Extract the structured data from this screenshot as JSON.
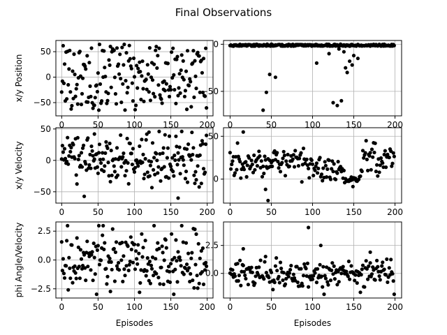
{
  "figure": {
    "title": "Final Observations"
  },
  "colors": {
    "marker": "#000000",
    "grid": "#b0b0b0",
    "frame": "#000000"
  },
  "chart_data": [
    {
      "type": "scatter",
      "name": "top-left",
      "xlabel": "",
      "ylabel": "x/y Position",
      "xlim": [
        -8,
        208
      ],
      "ylim": [
        -76,
        72
      ],
      "xticks": [
        0,
        50,
        100,
        150,
        200
      ],
      "yticks": [
        -50,
        0,
        50
      ],
      "ytick_labels": [
        "−50",
        "0",
        "50"
      ],
      "grid": true,
      "seed": 101,
      "n": 200,
      "generator": "uniform_block",
      "low": -65,
      "high": 65
    },
    {
      "type": "scatter",
      "name": "top-right",
      "xlabel": "",
      "ylabel": "",
      "xlim": [
        -8,
        208
      ],
      "ylim": [
        -76,
        4
      ],
      "xticks": [
        0,
        50,
        100,
        150,
        200
      ],
      "yticks": [
        -50,
        0
      ],
      "ytick_labels": [
        "−50",
        "0"
      ],
      "grid": true,
      "seed": 202,
      "n": 200,
      "generator": "near_zero_outliers",
      "base": -1,
      "spread": 2,
      "outliers": [
        [
          40,
          -70
        ],
        [
          44,
          -51
        ],
        [
          48,
          -32
        ],
        [
          55,
          -35
        ],
        [
          105,
          -20
        ],
        [
          120,
          -10
        ],
        [
          125,
          -62
        ],
        [
          130,
          -65
        ],
        [
          135,
          -60
        ],
        [
          140,
          -25
        ],
        [
          145,
          -18
        ],
        [
          150,
          -12
        ],
        [
          155,
          -15
        ],
        [
          142,
          -30
        ],
        [
          148,
          -22
        ],
        [
          138,
          -8
        ],
        [
          132,
          -5
        ]
      ]
    },
    {
      "type": "scatter",
      "name": "middle-left",
      "xlabel": "",
      "ylabel": "x/y Velocity",
      "xlim": [
        -8,
        208
      ],
      "ylim": [
        -68,
        52
      ],
      "xticks": [
        0,
        50,
        100,
        150,
        200
      ],
      "yticks": [
        -50,
        0,
        50
      ],
      "ytick_labels": [
        "−50",
        "0",
        "50"
      ],
      "grid": true,
      "seed": 303,
      "n": 200,
      "generator": "normal",
      "mean": 0,
      "sd": 20,
      "extra": [
        [
          160,
          -60
        ],
        [
          45,
          42
        ],
        [
          120,
          45
        ]
      ]
    },
    {
      "type": "scatter",
      "name": "middle-right",
      "xlabel": "",
      "ylabel": "",
      "xlim": [
        -8,
        208
      ],
      "ylim": [
        -28,
        60
      ],
      "xticks": [
        0,
        50,
        100,
        150,
        200
      ],
      "yticks": [
        0,
        50
      ],
      "ytick_labels": [
        "0",
        "50"
      ],
      "grid": true,
      "seed": 404,
      "n": 200,
      "generator": "segments",
      "extra": [
        [
          16,
          55
        ],
        [
          43,
          -12
        ],
        [
          46,
          -25
        ]
      ]
    },
    {
      "type": "scatter",
      "name": "bottom-left",
      "xlabel": "Episodes",
      "ylabel": "phi Angle/Velocity",
      "xlim": [
        -8,
        208
      ],
      "ylim": [
        -3.3,
        3.3
      ],
      "xticks": [
        0,
        50,
        100,
        150,
        200
      ],
      "yticks": [
        -2.5,
        0,
        2.5
      ],
      "ytick_labels": [
        "−2.5",
        "0.0",
        "2.5"
      ],
      "grid": true,
      "seed": 505,
      "n": 200,
      "generator": "normal",
      "mean": 0,
      "sd": 1.4
    },
    {
      "type": "scatter",
      "name": "bottom-right",
      "xlabel": "Episodes",
      "ylabel": "",
      "xlim": [
        -8,
        208
      ],
      "ylim": [
        -2.2,
        4.6
      ],
      "xticks": [
        0,
        50,
        100,
        150,
        200
      ],
      "yticks": [
        0,
        2.5
      ],
      "ytick_labels": [
        "0.0",
        "2.5"
      ],
      "grid": true,
      "seed": 606,
      "n": 200,
      "generator": "normal",
      "mean": 0,
      "sd": 0.6,
      "extra": [
        [
          95,
          4.1
        ],
        [
          110,
          2.5
        ],
        [
          16,
          2.2
        ],
        [
          170,
          1.9
        ]
      ]
    }
  ]
}
